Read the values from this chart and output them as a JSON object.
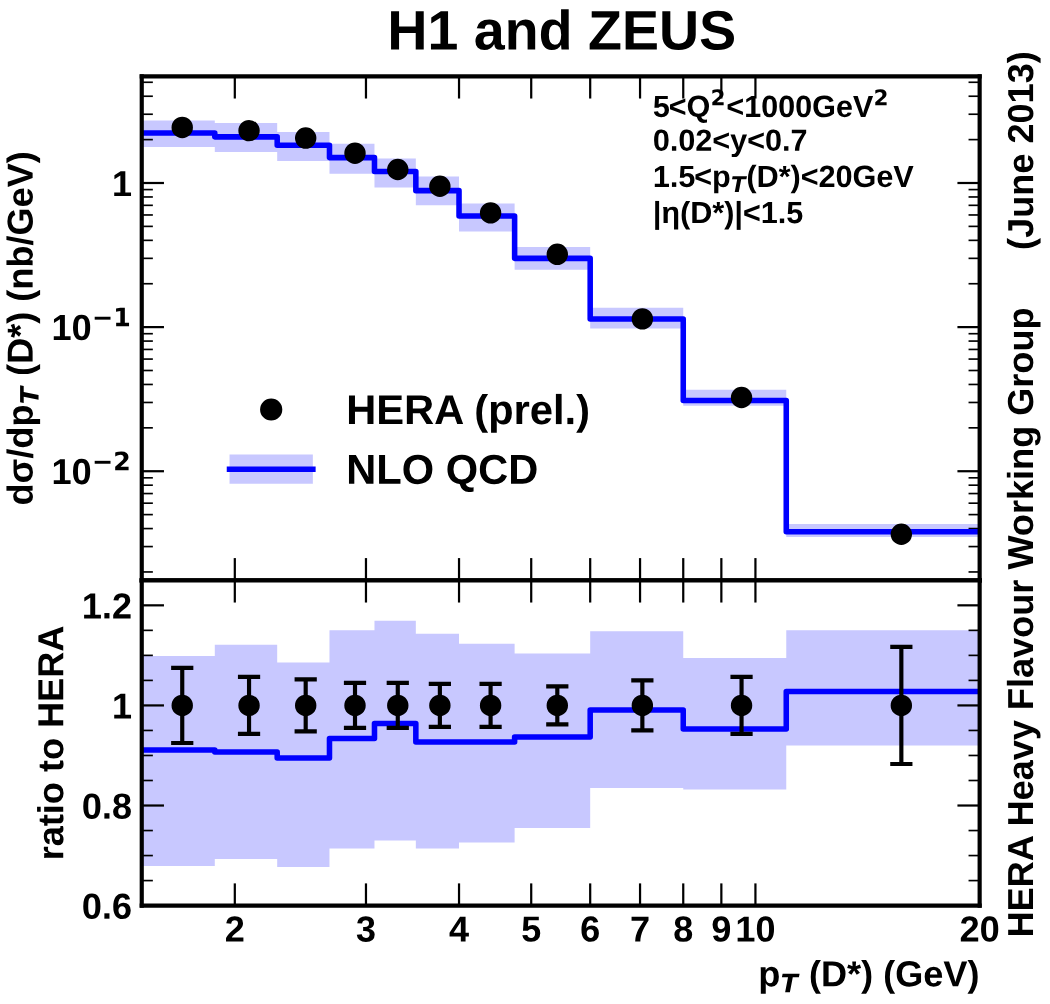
{
  "chart_data": [
    {
      "type": "step",
      "title": "H1 and ZEUS",
      "ylabel": "dσ/dp$_{T}$ (D*) (nb/GeV)",
      "annotations": [
        "5<Q$^{2}$<1000GeV$^{2}$",
        "0.02<y<0.7",
        "1.5<p$_{T}$(D*)<20GeV",
        "|η(D*)|<1.5",
        "(June 2013)",
        "HERA Heavy Flavour Working Group"
      ],
      "log": "xy",
      "xlim": [
        1.5,
        20
      ],
      "xticks": [
        2,
        3,
        4,
        5,
        6,
        7,
        8,
        9,
        10,
        20
      ],
      "ylim": [
        0.00175,
        5.5
      ],
      "yticks": [
        {
          "value": 0.01,
          "label": "10$^{−2}$"
        },
        {
          "value": 0.1,
          "label": "10$^{−1}$"
        },
        1
      ],
      "tick_labels": "y",
      "legend": "bottom left",
      "grid": false,
      "series": [
        {
          "name": "HERA (prel.)",
          "type": "scatter",
          "color": "#000000",
          "marker": "circle",
          "x": [
            1.7,
            2.09,
            2.49,
            2.9,
            3.31,
            3.77,
            4.41,
            5.42,
            7.05,
            9.58,
            15.7
          ],
          "values": [
            2.43,
            2.31,
            2.05,
            1.61,
            1.24,
            0.95,
            0.62,
            0.32,
            0.114,
            0.0325,
            0.00365
          ]
        },
        {
          "name": "NLO QCD",
          "color": "#0000ff",
          "x": [
            1.5,
            1.88,
            2.28,
            2.68,
            3.08,
            3.5,
            4.0,
            4.75,
            6.0,
            8.0,
            11.0,
            20.0
          ],
          "values": [
            2.22,
            2.09,
            1.83,
            1.5,
            1.2,
            0.885,
            0.59,
            0.3,
            0.114,
            0.031,
            0.0038,
            0.0038
          ],
          "lower": [
            1.78,
            1.64,
            1.42,
            1.16,
            0.93,
            0.7,
            0.46,
            0.25,
            0.098,
            0.0285,
            0.0035,
            0.0035
          ],
          "upper": [
            2.71,
            2.61,
            2.26,
            1.87,
            1.48,
            1.11,
            0.72,
            0.36,
            0.136,
            0.0367,
            0.0043,
            0.0043
          ]
        }
      ]
    },
    {
      "type": "step",
      "xlabel": "p$_{T}$ (D*) (GeV)",
      "ylabel": "ratio to HERA",
      "log": "x",
      "xlim": [
        1.5,
        20
      ],
      "xticks": [
        2,
        3,
        4,
        5,
        6,
        7,
        8,
        9,
        10,
        20
      ],
      "ylim": [
        0.6,
        1.25
      ],
      "yticks": [
        0.6,
        0.8,
        1,
        1.2
      ],
      "grid": false,
      "series": [
        {
          "type": "scatter",
          "color": "#000000",
          "marker": "circle",
          "x": [
            1.7,
            2.09,
            2.49,
            2.9,
            3.31,
            3.77,
            4.41,
            5.42,
            7.05,
            9.58,
            15.7
          ],
          "values": [
            1,
            1,
            1,
            1,
            1,
            1,
            1,
            1,
            1,
            1,
            1
          ],
          "errors": [
            0.075,
            0.057,
            0.052,
            0.045,
            0.045,
            0.043,
            0.043,
            0.038,
            0.05,
            0.057,
            0.117
          ]
        },
        {
          "color": "#0000ff",
          "x": [
            1.5,
            1.88,
            2.28,
            2.68,
            3.08,
            3.5,
            4.0,
            4.75,
            6.0,
            8.0,
            11.0,
            20.0
          ],
          "values": [
            0.911,
            0.907,
            0.895,
            0.934,
            0.964,
            0.927,
            0.927,
            0.937,
            0.991,
            0.953,
            1.028,
            1.028
          ],
          "lower": [
            0.679,
            0.693,
            0.677,
            0.714,
            0.73,
            0.714,
            0.726,
            0.755,
            0.835,
            0.832,
            0.92,
            0.92
          ],
          "upper": [
            1.099,
            1.121,
            1.086,
            1.15,
            1.169,
            1.143,
            1.123,
            1.104,
            1.148,
            1.095,
            1.15,
            1.15
          ]
        }
      ]
    }
  ]
}
